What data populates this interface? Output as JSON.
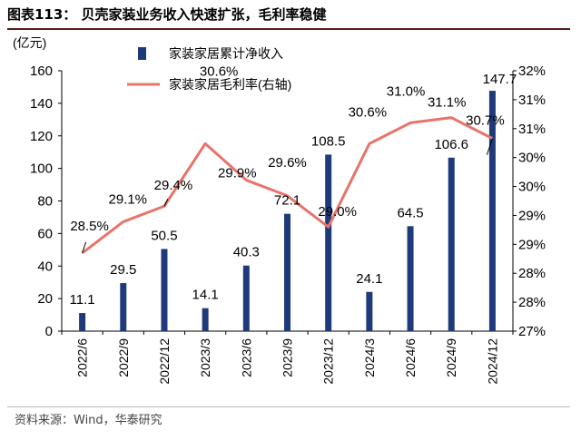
{
  "figure": {
    "title": "图表113：  贝壳家装业务收入快速扩张，毛利率稳健",
    "source": "资料来源：Wind，华泰研究"
  },
  "chart_data": {
    "type": "bar",
    "categories": [
      "2022/6",
      "2022/9",
      "2022/12",
      "2023/3",
      "2023/6",
      "2023/9",
      "2023/12",
      "2024/3",
      "2024/6",
      "2024/9",
      "2024/12"
    ],
    "ylabel": "(亿元)",
    "ylim": [
      0,
      160
    ],
    "yticks": [
      0,
      20,
      40,
      60,
      80,
      100,
      120,
      140,
      160
    ],
    "y2lim": [
      27,
      32
    ],
    "y2ticks": [
      "27%",
      "28%",
      "28%",
      "29%",
      "29%",
      "30%",
      "30%",
      "31%",
      "31%",
      "32%"
    ],
    "series": [
      {
        "name": "家装家居累计净收入",
        "type": "bar",
        "axis": "left",
        "color": "#1f3a7a",
        "values": [
          11.1,
          29.5,
          50.5,
          14.1,
          40.3,
          72.1,
          108.5,
          24.1,
          64.5,
          106.6,
          147.7
        ],
        "labels": [
          "11.1",
          "29.5",
          "50.5",
          "14.1",
          "40.3",
          "72.1",
          "108.5",
          "24.1",
          "64.5",
          "106.6",
          "147.7"
        ]
      },
      {
        "name": "家装家居毛利率(右轴)",
        "type": "line",
        "axis": "right",
        "color": "#e8736b",
        "values": [
          28.5,
          29.1,
          29.4,
          30.6,
          29.9,
          29.6,
          29.0,
          30.6,
          31.0,
          31.1,
          30.7
        ],
        "labels": [
          "28.5%",
          "29.1%",
          "29.4%",
          "30.6%",
          "29.9%",
          "29.6%",
          "29.0%",
          "30.6%",
          "31.0%",
          "31.1%",
          "30.7%"
        ]
      }
    ],
    "legend_position": "top"
  }
}
